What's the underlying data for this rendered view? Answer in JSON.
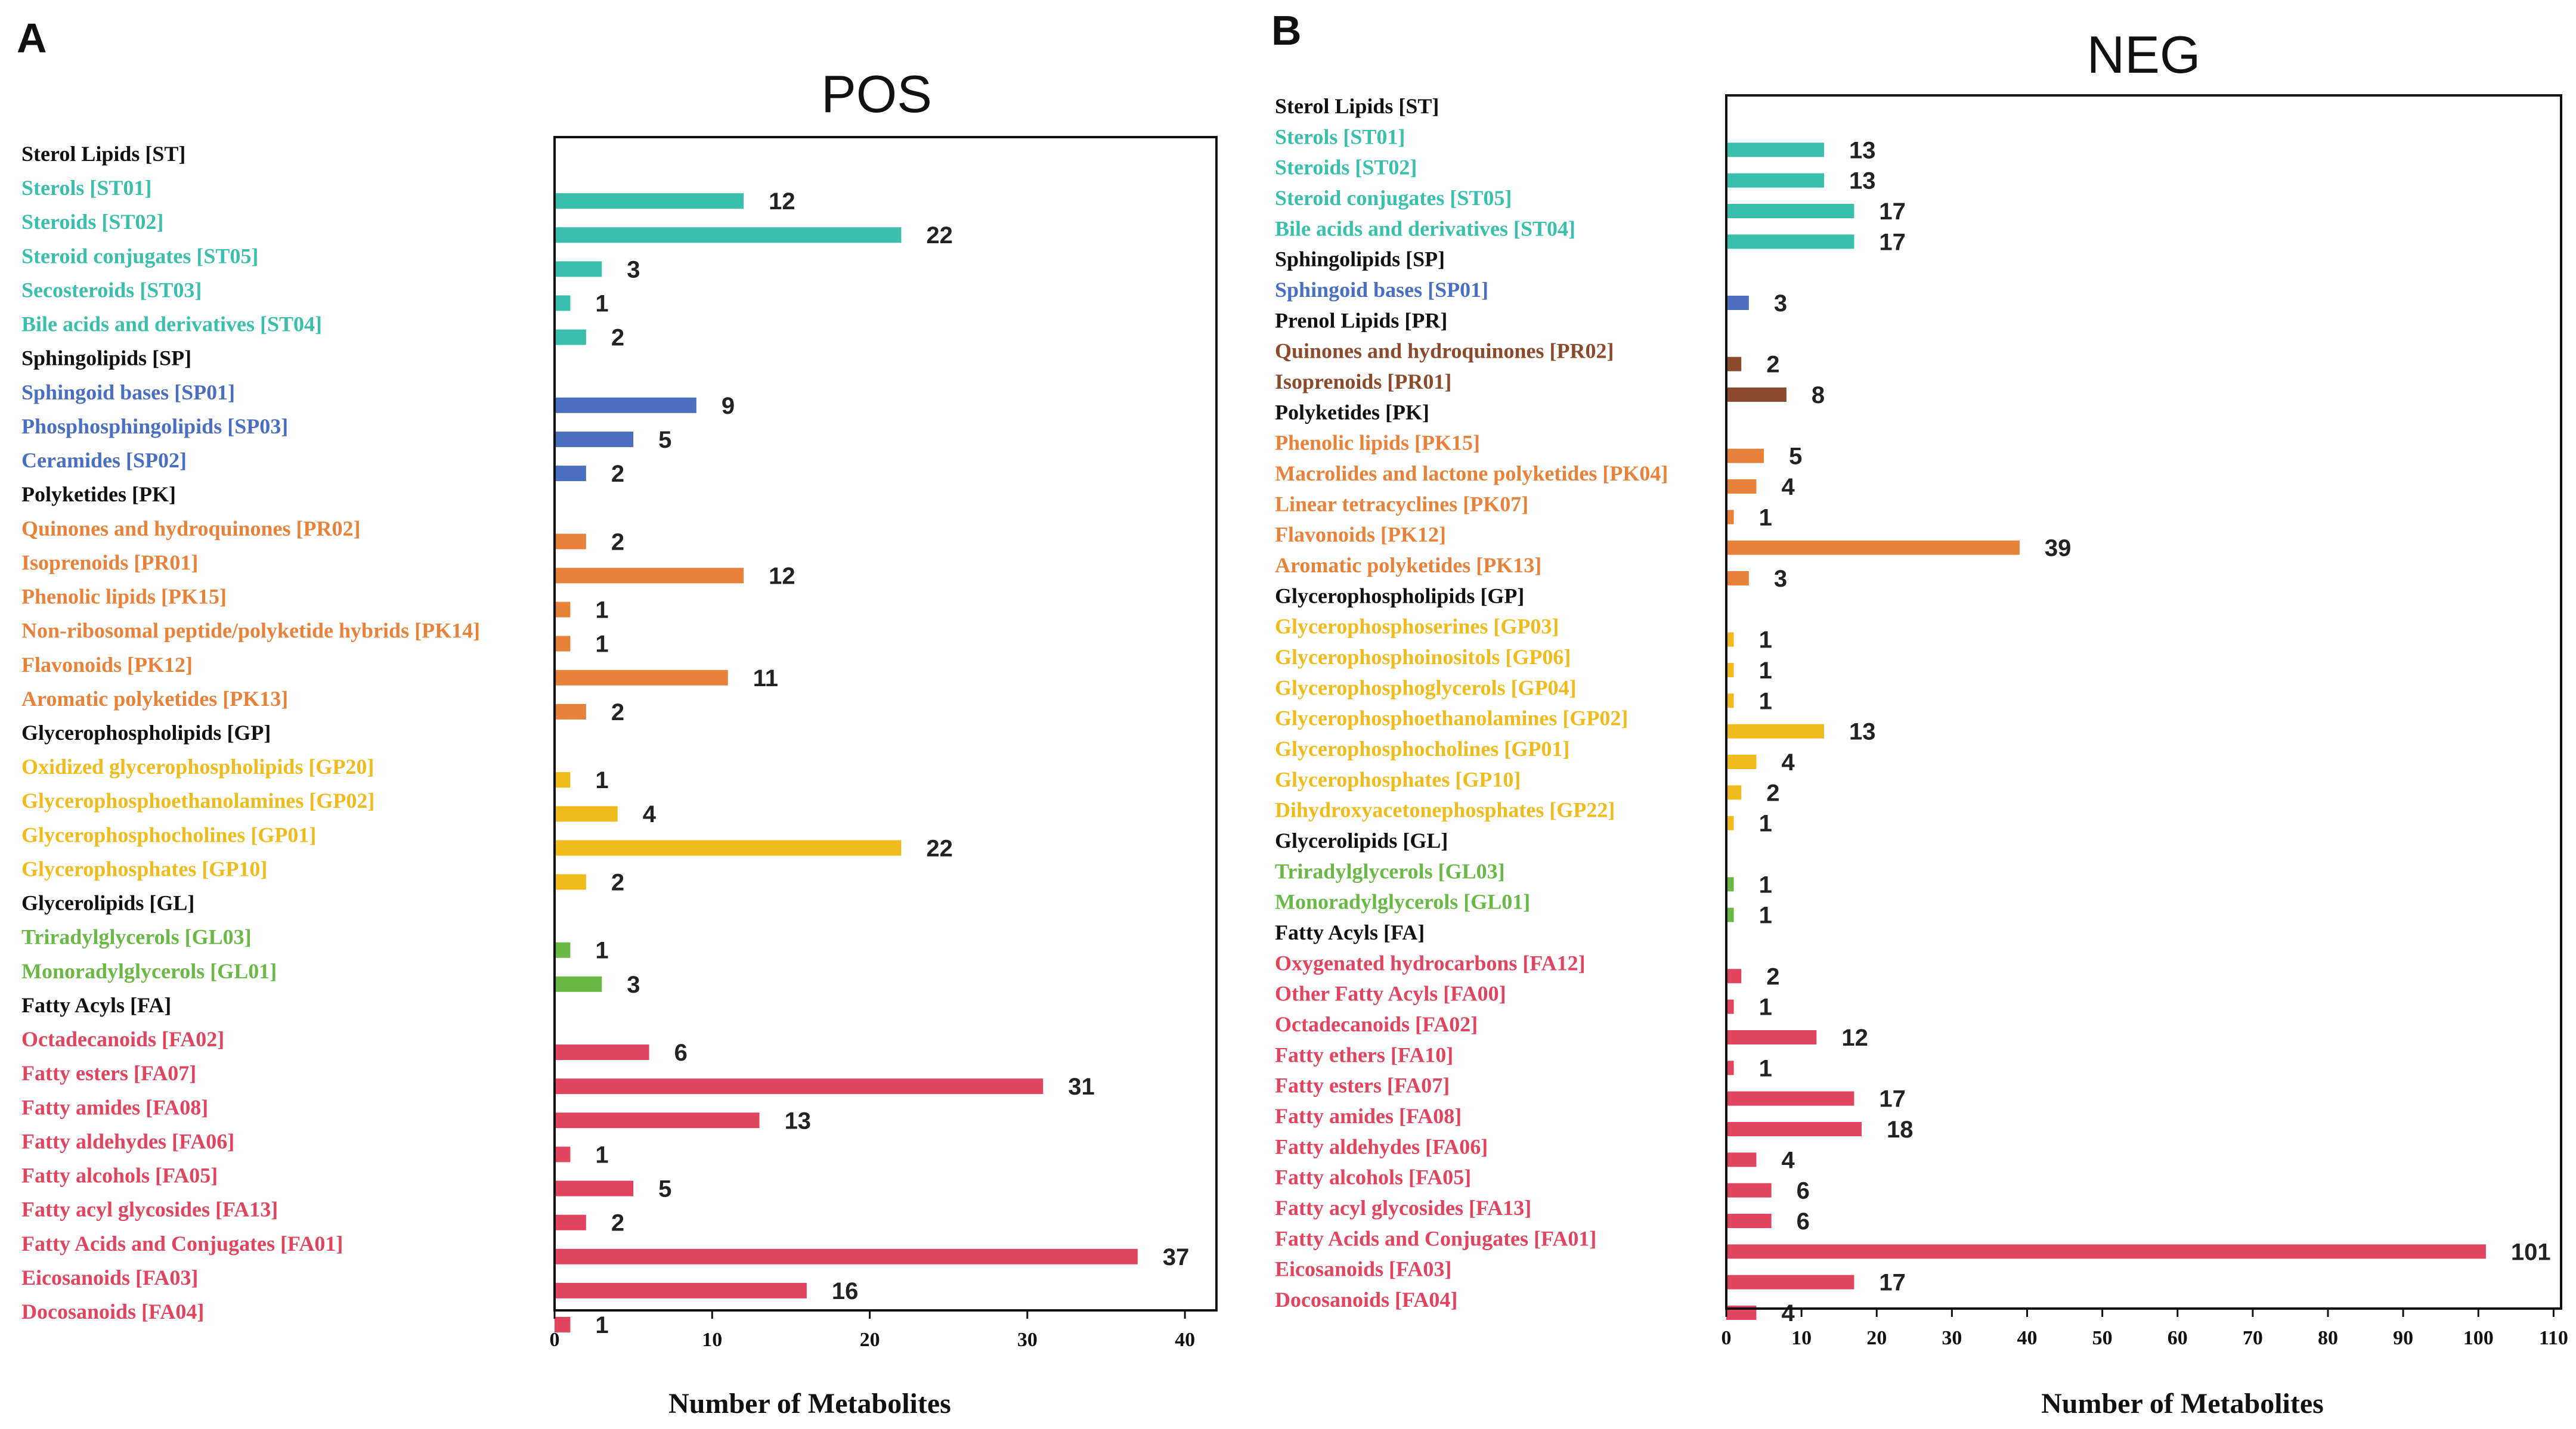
{
  "colors": {
    "ST": "#3bbfad",
    "SP": "#4a6fc0",
    "PR": "#8b4a2b",
    "PK": "#e8823a",
    "PK_POS_PR": "#e8823a",
    "GP": "#efbb1d",
    "GL": "#6ab845",
    "FA": "#e0445e",
    "header": "#111111"
  },
  "chart_data": [
    {
      "panel": "A",
      "type": "bar",
      "orientation": "horizontal",
      "title": "POS",
      "xlabel": "Number of Metabolites",
      "xlim": [
        0,
        42
      ],
      "xticks": [
        0,
        10,
        20,
        30,
        40
      ],
      "rows": [
        {
          "label": "Sterol Lipids [ST]",
          "header": true
        },
        {
          "label": "Sterols [ST01]",
          "value": 12,
          "group": "ST"
        },
        {
          "label": "Steroids [ST02]",
          "value": 22,
          "group": "ST"
        },
        {
          "label": "Steroid conjugates [ST05]",
          "value": 3,
          "group": "ST"
        },
        {
          "label": "Secosteroids [ST03]",
          "value": 1,
          "group": "ST"
        },
        {
          "label": "Bile acids and derivatives [ST04]",
          "value": 2,
          "group": "ST"
        },
        {
          "label": "Sphingolipids [SP]",
          "header": true
        },
        {
          "label": "Sphingoid bases [SP01]",
          "value": 9,
          "group": "SP"
        },
        {
          "label": "Phosphosphingolipids [SP03]",
          "value": 5,
          "group": "SP"
        },
        {
          "label": "Ceramides [SP02]",
          "value": 2,
          "group": "SP"
        },
        {
          "label": "Polyketides [PK]",
          "header": true
        },
        {
          "label": "Quinones and hydroquinones [PR02]",
          "value": 2,
          "group": "PK"
        },
        {
          "label": "Isoprenoids [PR01]",
          "value": 12,
          "group": "PK"
        },
        {
          "label": "Phenolic lipids [PK15]",
          "value": 1,
          "group": "PK"
        },
        {
          "label": "Non-ribosomal peptide/polyketide hybrids [PK14]",
          "value": 1,
          "group": "PK"
        },
        {
          "label": "Flavonoids [PK12]",
          "value": 11,
          "group": "PK"
        },
        {
          "label": "Aromatic polyketides [PK13]",
          "value": 2,
          "group": "PK"
        },
        {
          "label": "Glycerophospholipids [GP]",
          "header": true
        },
        {
          "label": "Oxidized glycerophospholipids [GP20]",
          "value": 1,
          "group": "GP"
        },
        {
          "label": "Glycerophosphoethanolamines [GP02]",
          "value": 4,
          "group": "GP"
        },
        {
          "label": "Glycerophosphocholines [GP01]",
          "value": 22,
          "group": "GP"
        },
        {
          "label": "Glycerophosphates [GP10]",
          "value": 2,
          "group": "GP"
        },
        {
          "label": "Glycerolipids [GL]",
          "header": true
        },
        {
          "label": "Triradylglycerols [GL03]",
          "value": 1,
          "group": "GL"
        },
        {
          "label": "Monoradylglycerols [GL01]",
          "value": 3,
          "group": "GL"
        },
        {
          "label": "Fatty Acyls [FA]",
          "header": true
        },
        {
          "label": "Octadecanoids [FA02]",
          "value": 6,
          "group": "FA"
        },
        {
          "label": "Fatty esters [FA07]",
          "value": 31,
          "group": "FA"
        },
        {
          "label": "Fatty amides [FA08]",
          "value": 13,
          "group": "FA"
        },
        {
          "label": "Fatty aldehydes [FA06]",
          "value": 1,
          "group": "FA"
        },
        {
          "label": "Fatty alcohols [FA05]",
          "value": 5,
          "group": "FA"
        },
        {
          "label": "Fatty acyl glycosides [FA13]",
          "value": 2,
          "group": "FA"
        },
        {
          "label": "Fatty Acids and Conjugates [FA01]",
          "value": 37,
          "group": "FA"
        },
        {
          "label": "Eicosanoids [FA03]",
          "value": 16,
          "group": "FA"
        },
        {
          "label": "Docosanoids [FA04]",
          "value": 1,
          "group": "FA"
        }
      ]
    },
    {
      "panel": "B",
      "type": "bar",
      "orientation": "horizontal",
      "title": "NEG",
      "xlabel": "Number of Metabolites",
      "xlim": [
        0,
        111
      ],
      "xticks": [
        0,
        10,
        20,
        30,
        40,
        50,
        60,
        70,
        80,
        90,
        100,
        110
      ],
      "rows": [
        {
          "label": "Sterol Lipids [ST]",
          "header": true
        },
        {
          "label": "Sterols [ST01]",
          "value": 13,
          "group": "ST"
        },
        {
          "label": "Steroids [ST02]",
          "value": 13,
          "group": "ST"
        },
        {
          "label": "Steroid conjugates [ST05]",
          "value": 17,
          "group": "ST"
        },
        {
          "label": "Bile acids and derivatives [ST04]",
          "value": 17,
          "group": "ST"
        },
        {
          "label": "Sphingolipids [SP]",
          "header": true
        },
        {
          "label": "Sphingoid bases [SP01]",
          "value": 3,
          "group": "SP"
        },
        {
          "label": "Prenol Lipids [PR]",
          "header": true
        },
        {
          "label": "Quinones and hydroquinones [PR02]",
          "value": 2,
          "group": "PR"
        },
        {
          "label": "Isoprenoids [PR01]",
          "value": 8,
          "group": "PR"
        },
        {
          "label": "Polyketides [PK]",
          "header": true
        },
        {
          "label": "Phenolic lipids [PK15]",
          "value": 5,
          "group": "PK"
        },
        {
          "label": "Macrolides and lactone polyketides [PK04]",
          "value": 4,
          "group": "PK"
        },
        {
          "label": "Linear tetracyclines [PK07]",
          "value": 1,
          "group": "PK"
        },
        {
          "label": "Flavonoids [PK12]",
          "value": 39,
          "group": "PK"
        },
        {
          "label": "Aromatic polyketides [PK13]",
          "value": 3,
          "group": "PK"
        },
        {
          "label": "Glycerophospholipids [GP]",
          "header": true
        },
        {
          "label": "Glycerophosphoserines [GP03]",
          "value": 1,
          "group": "GP"
        },
        {
          "label": "Glycerophosphoinositols [GP06]",
          "value": 1,
          "group": "GP"
        },
        {
          "label": "Glycerophosphoglycerols [GP04]",
          "value": 1,
          "group": "GP"
        },
        {
          "label": "Glycerophosphoethanolamines [GP02]",
          "value": 13,
          "group": "GP"
        },
        {
          "label": "Glycerophosphocholines [GP01]",
          "value": 4,
          "group": "GP"
        },
        {
          "label": "Glycerophosphates [GP10]",
          "value": 2,
          "group": "GP"
        },
        {
          "label": "Dihydroxyacetonephosphates [GP22]",
          "value": 1,
          "group": "GP"
        },
        {
          "label": "Glycerolipids [GL]",
          "header": true
        },
        {
          "label": "Triradylglycerols [GL03]",
          "value": 1,
          "group": "GL"
        },
        {
          "label": "Monoradylglycerols [GL01]",
          "value": 1,
          "group": "GL"
        },
        {
          "label": "Fatty Acyls [FA]",
          "header": true
        },
        {
          "label": "Oxygenated hydrocarbons [FA12]",
          "value": 2,
          "group": "FA"
        },
        {
          "label": "Other Fatty Acyls [FA00]",
          "value": 1,
          "group": "FA"
        },
        {
          "label": "Octadecanoids [FA02]",
          "value": 12,
          "group": "FA"
        },
        {
          "label": "Fatty ethers [FA10]",
          "value": 1,
          "group": "FA"
        },
        {
          "label": "Fatty esters [FA07]",
          "value": 17,
          "group": "FA"
        },
        {
          "label": "Fatty amides [FA08]",
          "value": 18,
          "group": "FA"
        },
        {
          "label": "Fatty aldehydes [FA06]",
          "value": 4,
          "group": "FA"
        },
        {
          "label": "Fatty alcohols [FA05]",
          "value": 6,
          "group": "FA"
        },
        {
          "label": "Fatty acyl glycosides [FA13]",
          "value": 6,
          "group": "FA"
        },
        {
          "label": "Fatty Acids and Conjugates [FA01]",
          "value": 101,
          "group": "FA"
        },
        {
          "label": "Eicosanoids [FA03]",
          "value": 17,
          "group": "FA"
        },
        {
          "label": "Docosanoids [FA04]",
          "value": 4,
          "group": "FA"
        }
      ]
    }
  ]
}
